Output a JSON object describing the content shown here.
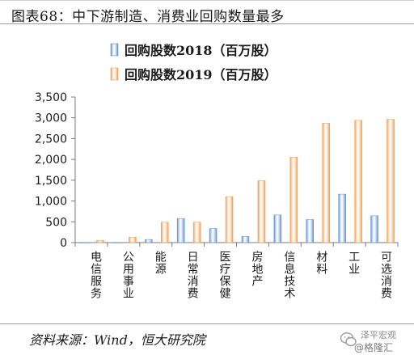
{
  "title": "图表68：中下游制造、消费业回购数量最多",
  "source": "资料来源：Wind，恒大研究院",
  "watermark": {
    "line1": "泽平宏观",
    "line2": "@格隆汇"
  },
  "colors": {
    "series_2018": "#5b8fd6",
    "series_2019": "#f59a48",
    "axis": "#7a7a7a",
    "text": "#1a1a1a"
  },
  "chart_data": {
    "type": "bar",
    "title": "",
    "xlabel": "",
    "ylabel": "",
    "ylim": [
      0,
      3500
    ],
    "yticks": [
      0,
      500,
      1000,
      1500,
      2000,
      2500,
      3000,
      3500
    ],
    "ytick_labels": [
      "0",
      "500",
      "1,000",
      "1,500",
      "2,000",
      "2,500",
      "3,000",
      "3,500"
    ],
    "categories": [
      "电信服务",
      "公用事业",
      "能源",
      "日常消费",
      "医疗保健",
      "房地产",
      "信息技术",
      "材料",
      "工业",
      "可选消费"
    ],
    "series": [
      {
        "name": "回购股数2018（百万股）",
        "values": [
          5,
          5,
          75,
          580,
          340,
          150,
          665,
          555,
          1165,
          645
        ]
      },
      {
        "name": "回购股数2019（百万股）",
        "values": [
          55,
          130,
          490,
          490,
          1105,
          1490,
          2055,
          2870,
          2940,
          2965
        ]
      }
    ],
    "legend_position": "top",
    "grid": false
  }
}
